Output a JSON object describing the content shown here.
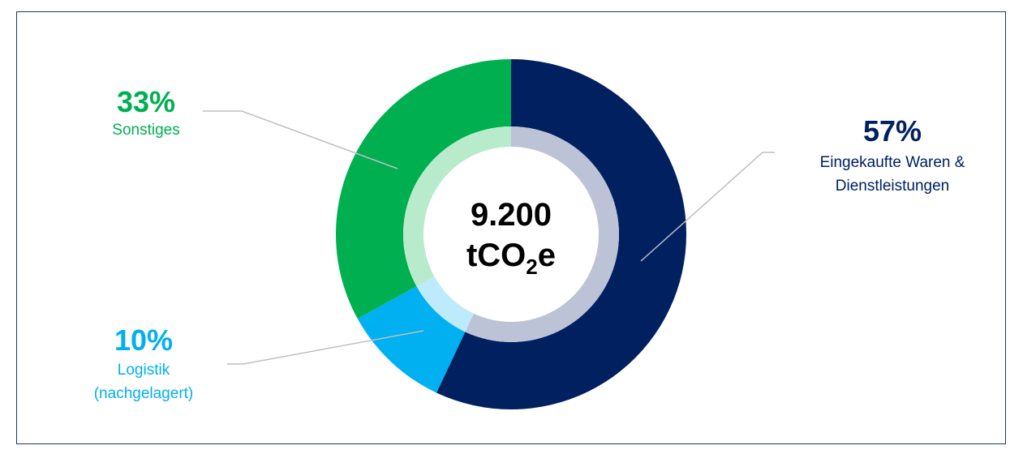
{
  "chart_data": {
    "type": "donut",
    "center_value": "9.200",
    "center_unit_parts": [
      "tCO",
      "2",
      "e"
    ],
    "categories": [
      "Eingekaufte Waren & Dienstleistungen",
      "Logistik (nachgelagert)",
      "Sonstiges"
    ],
    "values": [
      57,
      10,
      33
    ],
    "value_labels": [
      "57%",
      "10%",
      "33%"
    ],
    "colors": [
      "#002060",
      "#00b0f0",
      "#00b050"
    ],
    "inner_colors": [
      "#bcc3d6",
      "#bdebfb",
      "#b8ebcb"
    ]
  }
}
